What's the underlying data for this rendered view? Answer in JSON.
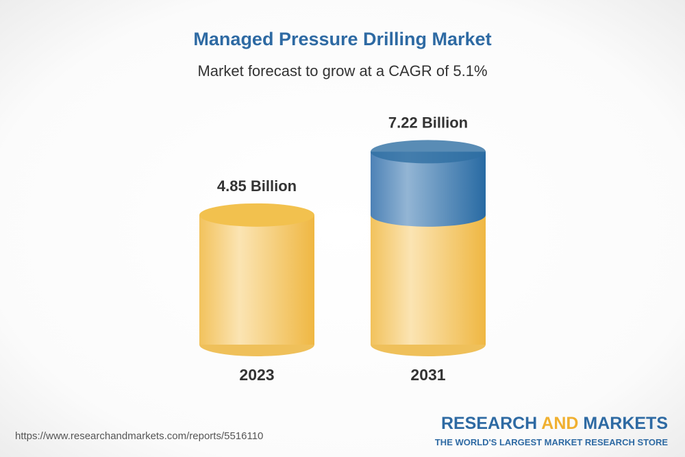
{
  "chart_data": {
    "type": "bar",
    "title": "Managed Pressure Drilling Market",
    "subtitle": "Market forecast to grow at a CAGR of 5.1%",
    "categories": [
      "2023",
      "2031"
    ],
    "values": [
      4.85,
      7.22
    ],
    "value_labels": [
      "4.85 Billion",
      "7.22 Billion"
    ],
    "color": "#f2c14e",
    "growth_color": "#2f6fa3"
  },
  "footer": {
    "url": "https://www.researchandmarkets.com/reports/5516110",
    "logo": [
      "RESEARCH",
      "AND",
      "MARKETS"
    ],
    "tagline": "THE WORLD'S LARGEST MARKET RESEARCH STORE"
  }
}
